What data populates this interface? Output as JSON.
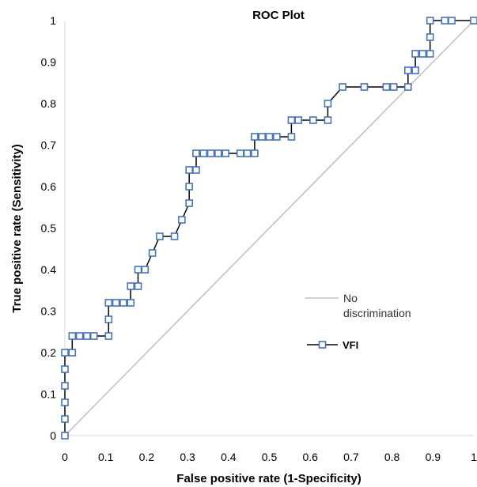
{
  "chart_data": {
    "type": "line",
    "title": "ROC Plot",
    "xlabel": "False positive rate (1-Specificity)",
    "ylabel": "True positive rate (Sensitivity)",
    "xlim": [
      0,
      1
    ],
    "ylim": [
      0,
      1
    ],
    "x_ticks": [
      "0",
      "0.1",
      "0.2",
      "0.3",
      "0.4",
      "0.5",
      "0.6",
      "0.7",
      "0.8",
      "0.9",
      "1"
    ],
    "y_ticks": [
      "0",
      "0.1",
      "0.2",
      "0.3",
      "0.4",
      "0.5",
      "0.6",
      "0.7",
      "0.8",
      "0.9",
      "1"
    ],
    "grid": false,
    "legend_position": "right",
    "colors": {
      "series": "#4472c4",
      "line": "#000000",
      "reference": "#bfbfbf"
    },
    "series": [
      {
        "name": "VFI",
        "marker": "square",
        "points": [
          [
            0,
            0
          ],
          [
            0,
            0.04
          ],
          [
            0,
            0.08
          ],
          [
            0,
            0.12
          ],
          [
            0,
            0.16
          ],
          [
            0,
            0.2
          ],
          [
            0.018,
            0.2
          ],
          [
            0.018,
            0.24
          ],
          [
            0.036,
            0.24
          ],
          [
            0.054,
            0.24
          ],
          [
            0.071,
            0.24
          ],
          [
            0.107,
            0.24
          ],
          [
            0.107,
            0.28
          ],
          [
            0.107,
            0.32
          ],
          [
            0.125,
            0.32
          ],
          [
            0.143,
            0.32
          ],
          [
            0.161,
            0.32
          ],
          [
            0.161,
            0.36
          ],
          [
            0.179,
            0.36
          ],
          [
            0.179,
            0.4
          ],
          [
            0.196,
            0.4
          ],
          [
            0.214,
            0.44
          ],
          [
            0.232,
            0.48
          ],
          [
            0.268,
            0.48
          ],
          [
            0.286,
            0.52
          ],
          [
            0.304,
            0.56
          ],
          [
            0.304,
            0.6
          ],
          [
            0.304,
            0.64
          ],
          [
            0.321,
            0.64
          ],
          [
            0.321,
            0.68
          ],
          [
            0.339,
            0.68
          ],
          [
            0.357,
            0.68
          ],
          [
            0.375,
            0.68
          ],
          [
            0.393,
            0.68
          ],
          [
            0.429,
            0.68
          ],
          [
            0.446,
            0.68
          ],
          [
            0.464,
            0.68
          ],
          [
            0.464,
            0.72
          ],
          [
            0.482,
            0.72
          ],
          [
            0.5,
            0.72
          ],
          [
            0.518,
            0.72
          ],
          [
            0.554,
            0.72
          ],
          [
            0.554,
            0.76
          ],
          [
            0.571,
            0.76
          ],
          [
            0.607,
            0.76
          ],
          [
            0.643,
            0.76
          ],
          [
            0.643,
            0.8
          ],
          [
            0.679,
            0.84
          ],
          [
            0.732,
            0.84
          ],
          [
            0.786,
            0.84
          ],
          [
            0.804,
            0.84
          ],
          [
            0.839,
            0.84
          ],
          [
            0.839,
            0.88
          ],
          [
            0.857,
            0.88
          ],
          [
            0.857,
            0.92
          ],
          [
            0.875,
            0.92
          ],
          [
            0.893,
            0.92
          ],
          [
            0.893,
            0.96
          ],
          [
            0.893,
            1
          ],
          [
            0.929,
            1
          ],
          [
            0.946,
            1
          ],
          [
            1,
            1
          ]
        ]
      },
      {
        "name": "No discrimination",
        "style": "line",
        "points": [
          [
            0,
            0
          ],
          [
            1,
            1
          ]
        ]
      }
    ],
    "legend": {
      "reference_label_line1": "No",
      "reference_label_line2": "discrimination",
      "series_label": "VFI"
    }
  }
}
